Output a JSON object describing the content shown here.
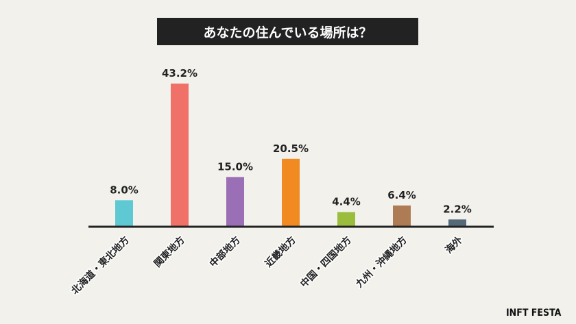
{
  "chart_data": {
    "type": "bar",
    "title": "あなたの住んでいる場所は？",
    "categories": [
      "北海道・東北地方",
      "関東地方",
      "中部地方",
      "近畿地方",
      "中国・四国地方",
      "九州・沖縄地方",
      "海外"
    ],
    "values": [
      8.0,
      43.2,
      15.0,
      20.5,
      4.4,
      6.4,
      2.2
    ],
    "data_labels": [
      "8.0%",
      "43.2%",
      "15.0%",
      "20.5%",
      "4.4%",
      "6.4%",
      "2.2%"
    ],
    "colors": [
      "#5ec9d2",
      "#f07167",
      "#9a6fb5",
      "#f28a22",
      "#9bbd3d",
      "#ad7c54",
      "#556a78"
    ],
    "ylim": [
      0,
      45
    ],
    "grid": false,
    "legend": "none",
    "xlabel": "",
    "ylabel": ""
  },
  "logo": "INFT FESTA"
}
